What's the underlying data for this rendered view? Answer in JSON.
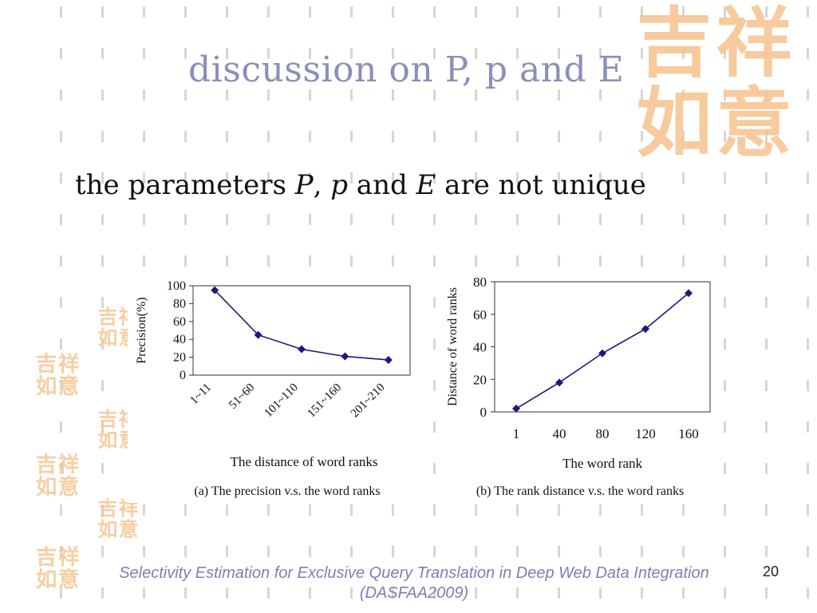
{
  "slide": {
    "title": "discussion on P, p and E",
    "subtitle": {
      "part1": "the parameters ",
      "var_P": "P",
      "part2": ", ",
      "var_p": "p",
      "part3": " and ",
      "var_E": "E",
      "part4": " are not unique"
    },
    "footer_line1": "Selectivity Estimation for Exclusive Query Translation in Deep Web Data Integration",
    "footer_line2": "(DASFAA2009)",
    "page_number": "20",
    "decor": {
      "seal_text": "吉祥如意",
      "seal_color": "#f6c38d",
      "grid_mark_color": "#d6d6d6"
    },
    "colors": {
      "title": "#8a8fb8",
      "footer": "#7b80b4",
      "series": "#1a1a80"
    }
  },
  "chart_data": [
    {
      "type": "line",
      "categories": [
        "1~11",
        "51~60",
        "101~110",
        "151~160",
        "201~210"
      ],
      "series": [
        {
          "values": [
            95,
            45,
            29,
            21,
            17
          ]
        }
      ],
      "title": "",
      "xlabel": "The distance of word ranks",
      "ylabel": "Precision(%)",
      "ylim": [
        0,
        100
      ],
      "yticks": [
        0,
        20,
        40,
        60,
        80,
        100
      ],
      "caption": "(a) The precision v.s. the word ranks",
      "grid": false,
      "marker": "diamond"
    },
    {
      "type": "line",
      "x": [
        1,
        40,
        80,
        120,
        160
      ],
      "xticks": [
        "1",
        "40",
        "80",
        "120",
        "160"
      ],
      "series": [
        {
          "values": [
            2,
            18,
            36,
            51,
            73
          ]
        }
      ],
      "title": "",
      "xlabel": "The word rank",
      "ylabel": "Distance of word ranks",
      "ylim": [
        0,
        80
      ],
      "yticks": [
        0,
        20,
        40,
        60,
        80
      ],
      "caption": "(b) The rank distance v.s. the word ranks",
      "grid": false,
      "marker": "diamond"
    }
  ]
}
